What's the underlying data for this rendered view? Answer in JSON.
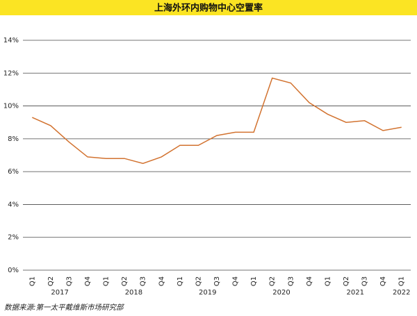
{
  "chart_data": {
    "type": "line",
    "title": "上海外环内购物中心空置率",
    "source": "数据来源:第一太平戴维斯市场研究部",
    "categories": [
      "Q1",
      "Q2",
      "Q3",
      "Q4",
      "Q1",
      "Q2",
      "Q3",
      "Q4",
      "Q1",
      "Q2",
      "Q3",
      "Q4",
      "Q1",
      "Q2",
      "Q3",
      "Q4",
      "Q1",
      "Q2",
      "Q3",
      "Q4",
      "Q1"
    ],
    "x_groups": [
      {
        "label": "2017",
        "count": 4
      },
      {
        "label": "2018",
        "count": 4
      },
      {
        "label": "2019",
        "count": 4
      },
      {
        "label": "2020",
        "count": 4
      },
      {
        "label": "2021",
        "count": 4
      },
      {
        "label": "2022",
        "count": 1
      }
    ],
    "values": [
      9.3,
      8.8,
      7.8,
      6.9,
      6.8,
      6.8,
      6.5,
      6.9,
      7.6,
      7.6,
      8.2,
      8.4,
      8.4,
      11.7,
      11.4,
      10.2,
      9.5,
      9.0,
      9.1,
      8.5,
      8.7
    ],
    "color": "#d2722f",
    "title_band_color": "#fbe423",
    "ylim": [
      0,
      14
    ],
    "yticks": [
      {
        "value": 0,
        "label": "0%"
      },
      {
        "value": 2,
        "label": "2%"
      },
      {
        "value": 4,
        "label": "4%"
      },
      {
        "value": 6,
        "label": "6%"
      },
      {
        "value": 8,
        "label": "8%"
      },
      {
        "value": 10,
        "label": "10%"
      },
      {
        "value": 12,
        "label": "12%"
      },
      {
        "value": 14,
        "label": "14%"
      }
    ],
    "grid": true
  }
}
